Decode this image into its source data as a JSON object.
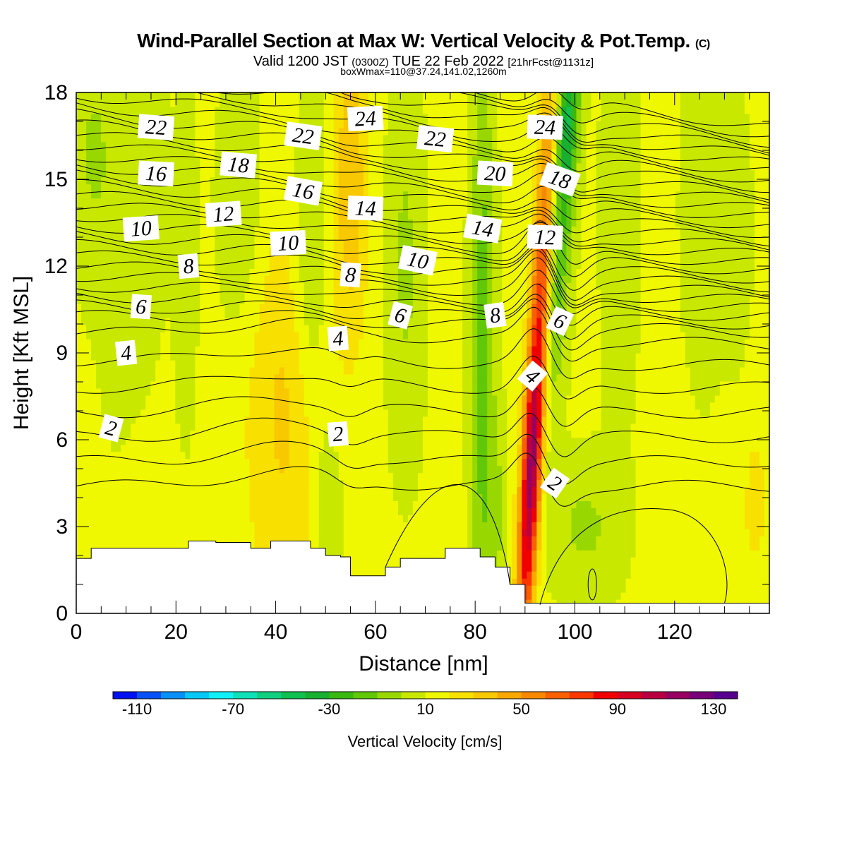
{
  "header": {
    "title": "Wind-Parallel Section at Max W: Vertical Velocity & Pot.Temp.",
    "title_tag": "(C)",
    "valid_prefix": "Valid 1200 JST",
    "valid_utc": "(0300Z)",
    "valid_date": "TUE 22 Feb 2022",
    "forecast": "[21hrFcst@1131z]",
    "box_info": "boxWmax=110@37.24,141.02,1260m"
  },
  "chart_data": {
    "type": "heatmap",
    "title": "Wind-Parallel Section at Max W: Vertical Velocity & Pot.Temp.",
    "xlabel": "Distance [nm]",
    "ylabel": "Height [Kft MSL]",
    "xlim": [
      0,
      139
    ],
    "ylim": [
      0,
      18
    ],
    "x_ticks": [
      0,
      20,
      40,
      60,
      80,
      100,
      120
    ],
    "y_ticks": [
      0,
      3,
      6,
      9,
      12,
      15,
      18
    ],
    "colorbar": {
      "label": "Vertical Velocity [cm/s]",
      "min": -120,
      "max": 140,
      "step": 10,
      "tick_values": [
        -110,
        -70,
        -30,
        10,
        50,
        90,
        130
      ],
      "colors": [
        "#0010f0",
        "#0850f8",
        "#0890f8",
        "#08c8f8",
        "#10f0f8",
        "#10e0b8",
        "#10d080",
        "#10c050",
        "#18b030",
        "#38b810",
        "#60c808",
        "#98d800",
        "#c8e800",
        "#f0f800",
        "#f8e000",
        "#f8c800",
        "#f8a800",
        "#f88800",
        "#f86000",
        "#f83800",
        "#f00000",
        "#d80020",
        "#b80040",
        "#980060",
        "#780078",
        "#580090"
      ]
    },
    "vertical_velocity_cm_s": {
      "x": [
        0,
        2,
        4,
        6,
        8,
        10,
        12,
        14,
        16,
        18,
        20,
        22,
        24,
        26,
        28,
        30,
        32,
        34,
        36,
        38,
        40,
        42,
        44,
        46,
        48,
        50,
        52,
        54,
        56,
        58,
        60,
        62,
        64,
        66,
        68,
        70,
        72,
        74,
        76,
        78,
        80,
        82,
        84,
        86,
        88,
        90,
        92,
        94,
        96,
        98,
        100,
        102,
        104,
        106,
        108,
        110,
        112,
        114,
        116,
        118,
        120,
        122,
        124,
        126,
        128,
        130,
        132,
        134,
        136,
        138
      ],
      "y": [
        0,
        1,
        2,
        3,
        4,
        5,
        6,
        7,
        8,
        9,
        10,
        11,
        12,
        13,
        14,
        15,
        16,
        17,
        18
      ],
      "peak": {
        "x": 91,
        "y": 4.5,
        "value": 110
      }
    },
    "potential_temperature_contours_C": [
      2,
      4,
      6,
      8,
      10,
      12,
      14,
      16,
      18,
      20,
      22,
      24
    ],
    "contour_labels": [
      {
        "text": "22",
        "x": 16,
        "y": 16.8
      },
      {
        "text": "16",
        "x": 16,
        "y": 15.2
      },
      {
        "text": "10",
        "x": 13,
        "y": 13.3
      },
      {
        "text": "8",
        "x": 22.5,
        "y": 12.0
      },
      {
        "text": "6",
        "x": 13,
        "y": 10.6
      },
      {
        "text": "4",
        "x": 10,
        "y": 9.0
      },
      {
        "text": "2",
        "x": 7,
        "y": 6.4
      },
      {
        "text": "18",
        "x": 32.5,
        "y": 15.5
      },
      {
        "text": "12",
        "x": 29.5,
        "y": 13.8
      },
      {
        "text": "22",
        "x": 45.5,
        "y": 16.5
      },
      {
        "text": "16",
        "x": 45.5,
        "y": 14.6
      },
      {
        "text": "10",
        "x": 42.5,
        "y": 12.8
      },
      {
        "text": "24",
        "x": 58,
        "y": 17.1
      },
      {
        "text": "14",
        "x": 58,
        "y": 14.0
      },
      {
        "text": "8",
        "x": 55,
        "y": 11.7
      },
      {
        "text": "4",
        "x": 52.5,
        "y": 9.5
      },
      {
        "text": "2",
        "x": 52.5,
        "y": 6.2
      },
      {
        "text": "22",
        "x": 72,
        "y": 16.4
      },
      {
        "text": "10",
        "x": 68.5,
        "y": 12.2
      },
      {
        "text": "6",
        "x": 65,
        "y": 10.3
      },
      {
        "text": "20",
        "x": 84,
        "y": 15.2
      },
      {
        "text": "14",
        "x": 81.5,
        "y": 13.3
      },
      {
        "text": "8",
        "x": 84,
        "y": 10.3
      },
      {
        "text": "24",
        "x": 94,
        "y": 16.8
      },
      {
        "text": "18",
        "x": 97,
        "y": 15.0
      },
      {
        "text": "12",
        "x": 94,
        "y": 13.0
      },
      {
        "text": "6",
        "x": 97,
        "y": 10.1
      },
      {
        "text": "4",
        "x": 91.5,
        "y": 8.2
      },
      {
        "text": "2",
        "x": 96,
        "y": 4.5
      }
    ]
  }
}
